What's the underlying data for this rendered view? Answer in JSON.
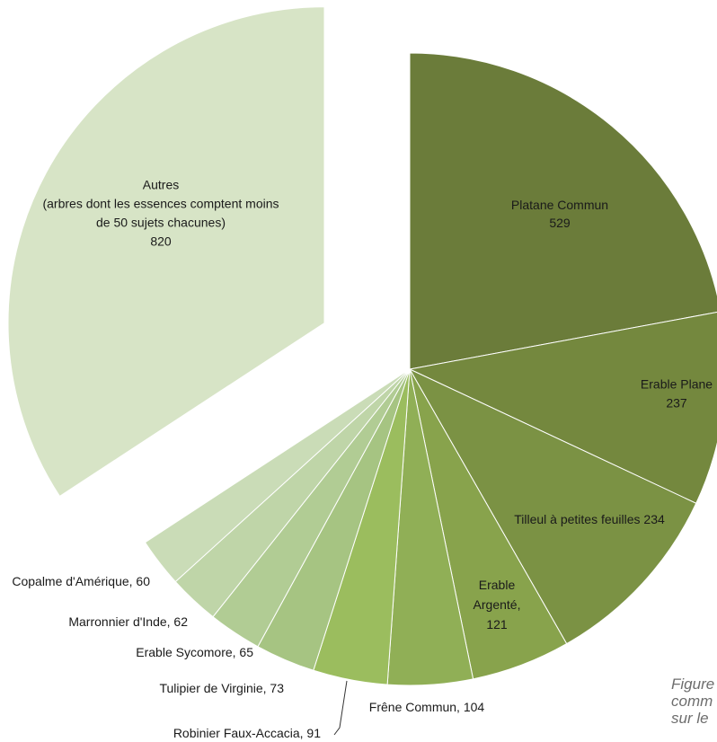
{
  "chart_data": {
    "type": "pie",
    "slices": [
      {
        "label": "Platane Commun",
        "value": 529,
        "color": "#6b7c3a",
        "display": [
          "Platane Commun",
          "529"
        ]
      },
      {
        "label": "Erable Plane",
        "value": 237,
        "color": "#74883e",
        "display": [
          "Erable Plane",
          "237"
        ]
      },
      {
        "label": "Tilleul à petites feuilles",
        "value": 234,
        "color": "#7b9244",
        "display": [
          "Tilleul à petites feuilles 234"
        ]
      },
      {
        "label": "Erable Argenté",
        "value": 121,
        "color": "#88a34c",
        "display": [
          "Erable",
          "Argenté,",
          "121"
        ]
      },
      {
        "label": "Frêne Commun",
        "value": 104,
        "color": "#90af56",
        "display": [
          "Frêne Commun, 104"
        ]
      },
      {
        "label": "Robinier Faux-Accacia",
        "value": 91,
        "color": "#9bbd5e",
        "display": [
          "Robinier Faux-Accacia, 91"
        ]
      },
      {
        "label": "Tulipier de Virginie",
        "value": 73,
        "color": "#a6c482",
        "display": [
          "Tulipier de Virginie, 73"
        ]
      },
      {
        "label": "Erable Sycomore",
        "value": 65,
        "color": "#b1cc94",
        "display": [
          "Erable Sycomore, 65"
        ]
      },
      {
        "label": "Marronnier d'Inde",
        "value": 62,
        "color": "#bfd5a8",
        "display": [
          "Marronnier d'Inde, 62"
        ]
      },
      {
        "label": "Copalme d'Amérique",
        "value": 60,
        "color": "#cadcb7",
        "display": [
          "Copalme d'Amérique, 60"
        ]
      },
      {
        "label": "Autres",
        "value": 820,
        "color": "#d7e4c6",
        "exploded": true,
        "display": [
          "Autres",
          "(arbres dont les essences comptent moins",
          "de 50 sujets chacunes)",
          "820"
        ]
      }
    ]
  },
  "caption": [
    "Figure",
    "comm",
    "sur le"
  ]
}
